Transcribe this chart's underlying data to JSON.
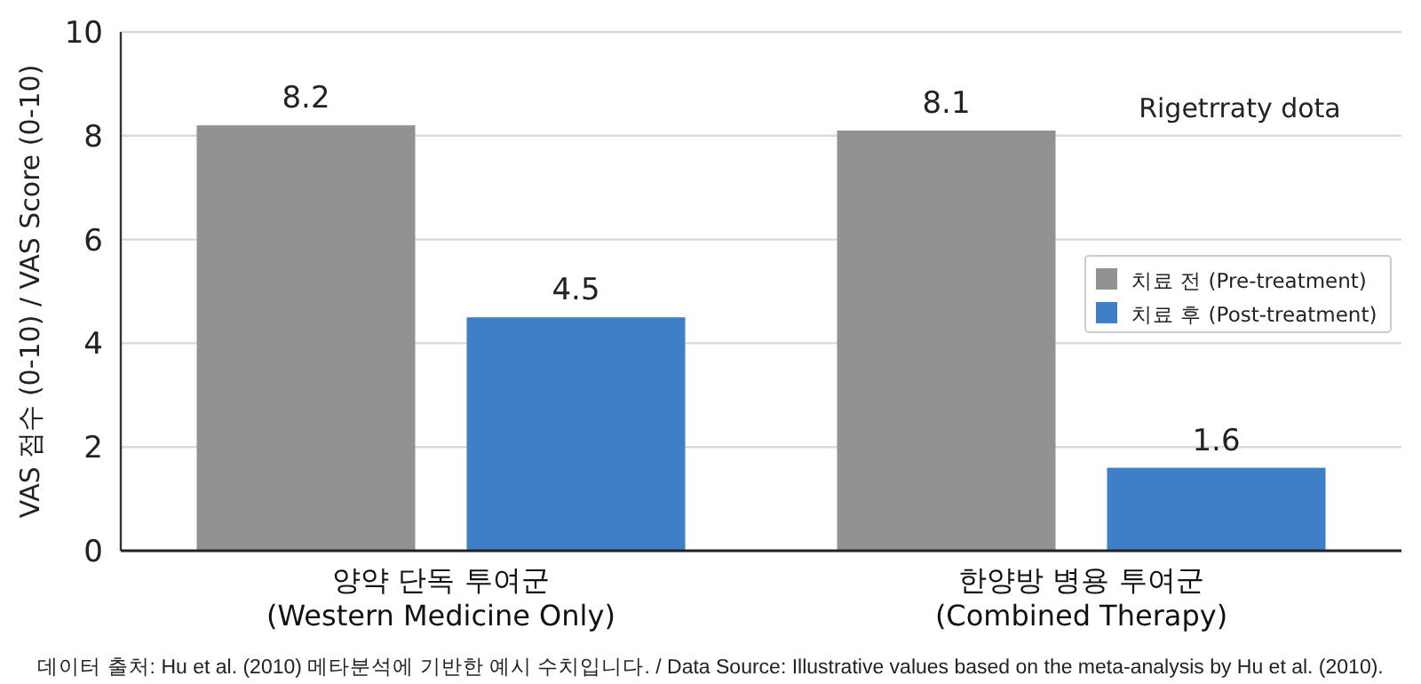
{
  "chart_data": {
    "type": "bar",
    "ylabel": "VAS 점수 (0-10) / VAS Score (0-10)",
    "categories": [
      "양약 단독 투여군\n(Western Medicine Only)",
      "한양방 병용 투여군\n(Combined Therapy)"
    ],
    "series": [
      {
        "name": "치료 전 (Pre-treatment)",
        "color": "#929292",
        "values": [
          8.2,
          8.1
        ]
      },
      {
        "name": "치료 후 (Post-treatment)",
        "color": "#3e7fc7",
        "values": [
          4.5,
          1.6
        ]
      }
    ],
    "ylim": [
      0,
      10
    ],
    "yticks": [
      0,
      2,
      4,
      6,
      8,
      10
    ],
    "grid": "y",
    "legend": "right",
    "data_labels": true,
    "annotations": [
      "Rigetrraty dota",
      "데이터 출처: Hu et al. (2010) 메타분석에 기반한 예시 수치입니다. / Data Source: Illustrative values based on the meta-analysis by Hu et al. (2010)."
    ]
  }
}
